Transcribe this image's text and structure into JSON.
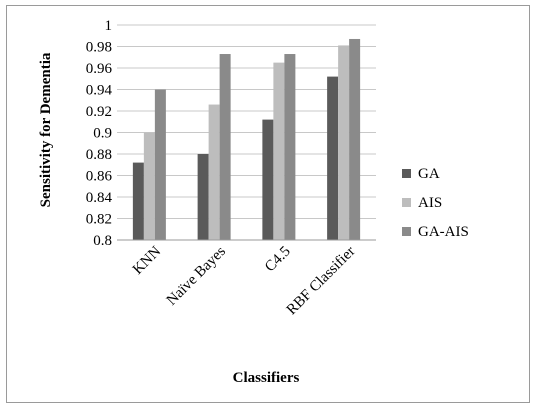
{
  "chart_data": {
    "type": "bar",
    "title": "",
    "xlabel": "Classifiers",
    "ylabel": "Sensitivity for Dementia",
    "ylim": [
      0.8,
      1
    ],
    "yticks": [
      "0.8",
      "0.82",
      "0.84",
      "0.86",
      "0.88",
      "0.9",
      "0.92",
      "0.94",
      "0.96",
      "0.98",
      "1"
    ],
    "categories": [
      "KNN",
      "Naïve Bayes",
      "C4.5",
      "RBF Classifier"
    ],
    "series": [
      {
        "name": "GA",
        "color": "#5a5a5a",
        "values": [
          0.872,
          0.88,
          0.912,
          0.952
        ]
      },
      {
        "name": "AIS",
        "color": "#bdbdbd",
        "values": [
          0.9,
          0.926,
          0.965,
          0.981
        ]
      },
      {
        "name": "GA-AIS",
        "color": "#8a8a8a",
        "values": [
          0.94,
          0.973,
          0.973,
          0.987
        ]
      }
    ],
    "grid": true,
    "legend_position": "right"
  }
}
